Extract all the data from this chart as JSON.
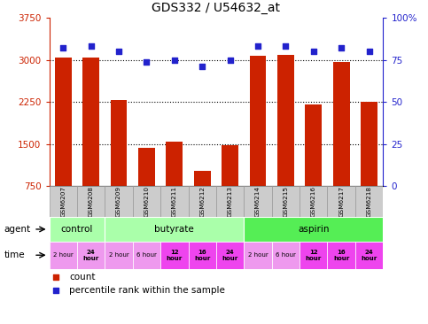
{
  "title": "GDS332 / U54632_at",
  "samples": [
    "GSM6207",
    "GSM6208",
    "GSM6209",
    "GSM6210",
    "GSM6211",
    "GSM6212",
    "GSM6213",
    "GSM6214",
    "GSM6215",
    "GSM6216",
    "GSM6217",
    "GSM6218"
  ],
  "counts": [
    3035,
    3040,
    2290,
    1430,
    1540,
    1020,
    1480,
    3080,
    3095,
    2210,
    2960,
    2250
  ],
  "percentiles": [
    82,
    83,
    80,
    74,
    75,
    71,
    75,
    83,
    83,
    80,
    82,
    80
  ],
  "ylim_left": [
    750,
    3750
  ],
  "ylim_right": [
    0,
    100
  ],
  "yticks_left": [
    750,
    1500,
    2250,
    3000,
    3750
  ],
  "yticks_right": [
    0,
    25,
    50,
    75,
    100
  ],
  "grid_values": [
    1500,
    2250,
    3000
  ],
  "bar_color": "#cc2200",
  "dot_color": "#2222cc",
  "agent_groups": [
    {
      "label": "control",
      "start": 0,
      "end": 2,
      "color": "#aaffaa"
    },
    {
      "label": "butyrate",
      "start": 2,
      "end": 7,
      "color": "#aaffaa"
    },
    {
      "label": "aspirin",
      "start": 7,
      "end": 12,
      "color": "#55ee55"
    }
  ],
  "time_labels": [
    "2 hour",
    "24\nhour",
    "2 hour",
    "6 hour",
    "12\nhour",
    "16\nhour",
    "24\nhour",
    "2 hour",
    "6 hour",
    "12\nhour",
    "16\nhour",
    "24\nhour"
  ],
  "time_colors_light": [
    "#ee99ee",
    "#ee99ee",
    "#ee99ee",
    "#ee99ee",
    "#ee44ee",
    "#ee44ee",
    "#ee44ee",
    "#ee99ee",
    "#ee99ee",
    "#ee44ee",
    "#ee44ee",
    "#ee44ee"
  ],
  "time_bold": [
    false,
    true,
    false,
    false,
    true,
    true,
    true,
    false,
    false,
    true,
    true,
    true
  ],
  "tick_color_left": "#cc2200",
  "tick_color_right": "#2222cc",
  "sample_bg_color": "#cccccc",
  "sample_border_color": "#999999"
}
